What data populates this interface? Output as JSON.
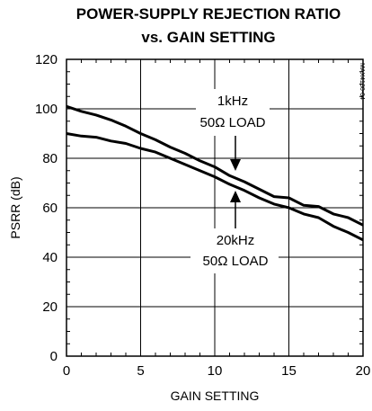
{
  "chart_data": {
    "type": "line",
    "title_line1": "POWER-SUPPLY REJECTION RATIO",
    "title_line2": "vs. GAIN SETTING",
    "xlabel": "GAIN SETTING",
    "ylabel": "PSRR (dB)",
    "xlim": [
      0,
      20
    ],
    "ylim": [
      0,
      120
    ],
    "xticks": [
      0,
      5,
      10,
      15,
      20
    ],
    "yticks": [
      0,
      20,
      40,
      60,
      80,
      100,
      120
    ],
    "grid": true,
    "series": [
      {
        "name": "1kHz 50Ω LOAD",
        "x": [
          0,
          1,
          2,
          3,
          4,
          5,
          6,
          7,
          8,
          9,
          10,
          11,
          12,
          13,
          14,
          15,
          16,
          17,
          18,
          19,
          20
        ],
        "values": [
          101,
          99,
          97.5,
          95.5,
          93,
          90,
          87.5,
          84.5,
          82,
          79,
          76.5,
          73,
          70.5,
          67.5,
          64.5,
          64,
          61,
          60.5,
          57.5,
          56,
          53
        ]
      },
      {
        "name": "20kHz 50Ω LOAD",
        "x": [
          0,
          1,
          2,
          3,
          4,
          5,
          6,
          7,
          8,
          9,
          10,
          11,
          12,
          13,
          14,
          15,
          16,
          17,
          18,
          19,
          20
        ],
        "values": [
          90,
          89,
          88.5,
          87,
          86,
          84,
          82.5,
          80,
          77.5,
          75,
          72.5,
          69.5,
          67,
          64,
          61.5,
          60,
          57.5,
          56,
          52.5,
          50,
          47
        ]
      }
    ],
    "annotations": {
      "upper_line1": "1kHz",
      "upper_line2": "50Ω LOAD",
      "lower_line1": "20kHz",
      "lower_line2": "50Ω LOAD"
    },
    "side_code": "MAX4130-04"
  }
}
